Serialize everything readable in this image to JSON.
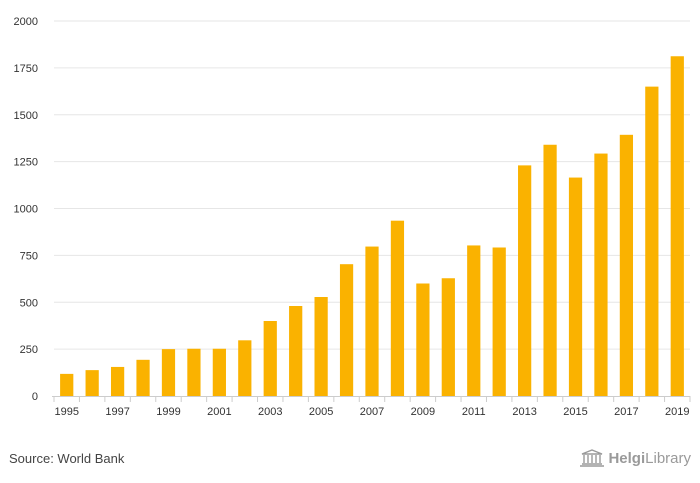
{
  "chart_data": {
    "type": "bar",
    "categories": [
      "1995",
      "1996",
      "1997",
      "1998",
      "1999",
      "2000",
      "2001",
      "2002",
      "2003",
      "2004",
      "2005",
      "2006",
      "2007",
      "2008",
      "2009",
      "2010",
      "2011",
      "2012",
      "2013",
      "2014",
      "2015",
      "2016",
      "2017",
      "2018",
      "2019"
    ],
    "x_tick_labels": [
      "1995",
      "1997",
      "1999",
      "2001",
      "2003",
      "2005",
      "2007",
      "2009",
      "2011",
      "2013",
      "2015",
      "2017",
      "2019"
    ],
    "values": [
      118,
      138,
      155,
      193,
      250,
      252,
      252,
      297,
      400,
      480,
      528,
      703,
      797,
      935,
      600,
      628,
      803,
      792,
      1230,
      1340,
      1165,
      1293,
      1393,
      1650,
      1812
    ],
    "ylim": [
      0,
      2000
    ],
    "y_ticks": [
      0,
      250,
      500,
      750,
      1000,
      1250,
      1500,
      1750,
      2000
    ],
    "grid": true,
    "bar_color": "#FAB200",
    "title": "",
    "xlabel": "",
    "ylabel": ""
  },
  "footer": {
    "source": "Source: World Bank",
    "logo_bold": "Helgi",
    "logo_rest": "Library"
  },
  "colors": {
    "grid": "#e6e6e6",
    "axis": "#cccccc",
    "logo": "#9a9a9a"
  }
}
